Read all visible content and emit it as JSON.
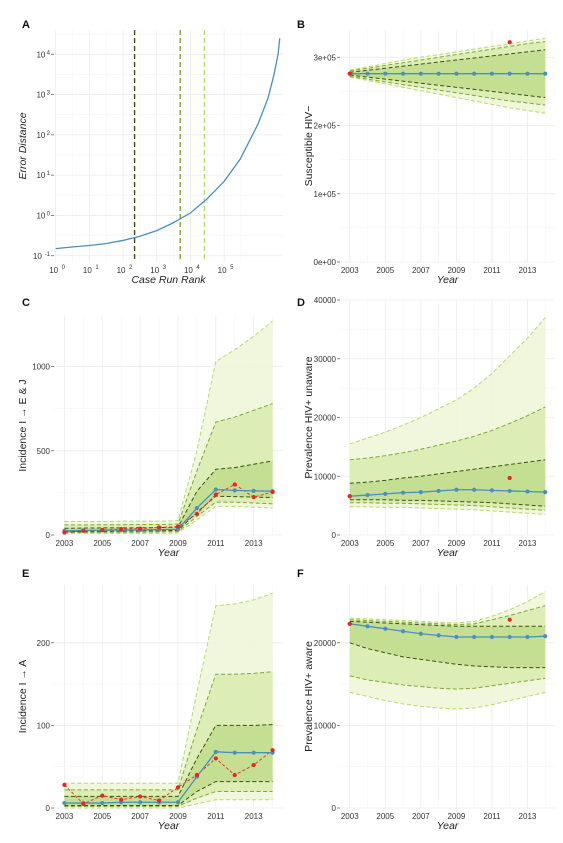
{
  "chart_data": [
    {
      "panel": "A",
      "type": "line",
      "xlabel": "Case Run Rank",
      "ylabel": "Error Distance",
      "x_scale": "log10",
      "y_scale": "log10",
      "xlim": [
        1,
        5000000
      ],
      "ylim": [
        0.07,
        40000
      ],
      "x_tick_exponents": [
        0,
        1,
        2,
        3,
        4,
        5
      ],
      "y_tick_exponents": [
        -1,
        0,
        1,
        2,
        3,
        4
      ],
      "series": [
        {
          "color": "#4a8fc0",
          "x": [
            1,
            3,
            10,
            30,
            100,
            300,
            1000,
            3000,
            10000,
            30000,
            100000,
            300000,
            1000000,
            2000000,
            3000000,
            4000000,
            4500000
          ],
          "y": [
            0.15,
            0.165,
            0.18,
            0.2,
            0.24,
            0.3,
            0.42,
            0.65,
            1.15,
            2.5,
            7,
            25,
            180,
            800,
            3000,
            10000,
            25000
          ]
        }
      ],
      "vlines": [
        {
          "x": 220,
          "color": "#3d4f14",
          "style": "dashed"
        },
        {
          "x": 5000,
          "color": "#7ea830",
          "style": "dashed"
        },
        {
          "x": 26000,
          "color": "#b8d96a",
          "style": "dashed"
        }
      ]
    },
    {
      "panel": "B",
      "type": "line",
      "xlabel": "Year",
      "ylabel": "Susceptible HIV−",
      "ylim": [
        0,
        340000
      ],
      "y_ticks": [
        0,
        100000,
        200000,
        300000
      ],
      "y_tick_labels": [
        "0e+00",
        "1e+05",
        "2e+05",
        "3e+05"
      ],
      "x_ticks": [
        2003,
        2005,
        2007,
        2009,
        2011,
        2013
      ],
      "years": [
        2003,
        2004,
        2005,
        2006,
        2007,
        2008,
        2009,
        2010,
        2011,
        2012,
        2013,
        2014
      ],
      "median": [
        276000,
        276000,
        276000,
        276000,
        276000,
        276000,
        276000,
        276000,
        276000,
        276000,
        276000,
        276000
      ],
      "bands": [
        {
          "lower": [
            271000,
            266000,
            261000,
            256000,
            251000,
            246000,
            241000,
            236000,
            231000,
            226000,
            222000,
            218000
          ],
          "upper": [
            281000,
            286000,
            291000,
            296000,
            300000,
            304000,
            308000,
            312000,
            316000,
            320000,
            324000,
            328000
          ],
          "fill": "#eef6d8",
          "line": "#b8d96a"
        },
        {
          "lower": [
            272000,
            268000,
            264000,
            260000,
            256000,
            252000,
            248000,
            244000,
            240000,
            236000,
            233000,
            230000
          ],
          "upper": [
            280000,
            284000,
            288000,
            292000,
            296000,
            300000,
            304000,
            308000,
            312000,
            316000,
            320000,
            323000
          ],
          "fill": "#d9ecb0",
          "line": "#7ea830"
        },
        {
          "lower": [
            274000,
            271000,
            268000,
            265000,
            262000,
            259000,
            256000,
            253000,
            250000,
            247000,
            244000,
            241000
          ],
          "upper": [
            278000,
            281000,
            284000,
            287000,
            290000,
            293000,
            296000,
            299000,
            302000,
            305000,
            308000,
            311000
          ],
          "fill": "#c2dd8e",
          "line": "#3d4f14"
        }
      ],
      "observed": [
        {
          "year": 2003,
          "value": 276000
        },
        {
          "year": 2012,
          "value": 322000
        }
      ]
    },
    {
      "panel": "C",
      "type": "line",
      "xlabel": "Year",
      "ylabel": "Incidence I → E & J",
      "ylim": [
        0,
        1300
      ],
      "y_ticks": [
        0,
        500,
        1000
      ],
      "y_tick_labels": [
        "0",
        "500",
        "1000"
      ],
      "x_ticks": [
        2003,
        2005,
        2007,
        2009,
        2011,
        2013
      ],
      "years": [
        2003,
        2004,
        2005,
        2006,
        2007,
        2008,
        2009,
        2010,
        2011,
        2012,
        2013,
        2014
      ],
      "median": [
        25,
        27,
        28,
        29,
        30,
        32,
        34,
        160,
        270,
        265,
        262,
        260
      ],
      "bands": [
        {
          "lower": [
            10,
            10,
            10,
            10,
            10,
            10,
            12,
            90,
            170,
            170,
            165,
            160
          ],
          "upper": [
            80,
            80,
            80,
            82,
            82,
            82,
            85,
            500,
            1030,
            1100,
            1180,
            1270
          ],
          "fill": "#eef6d8",
          "line": "#b8d96a"
        },
        {
          "lower": [
            15,
            15,
            16,
            16,
            17,
            18,
            20,
            110,
            195,
            195,
            190,
            185
          ],
          "upper": [
            60,
            60,
            61,
            61,
            62,
            62,
            65,
            380,
            670,
            700,
            740,
            780
          ],
          "fill": "#d9ecb0",
          "line": "#7ea830"
        },
        {
          "lower": [
            20,
            21,
            22,
            23,
            24,
            25,
            27,
            135,
            230,
            228,
            225,
            222
          ],
          "upper": [
            40,
            41,
            42,
            42,
            43,
            44,
            46,
            260,
            390,
            400,
            420,
            440
          ],
          "fill": "#c2dd8e",
          "line": "#3d4f14"
        }
      ],
      "observed_years": [
        2003,
        2004,
        2005,
        2006,
        2007,
        2008,
        2009,
        2010,
        2011,
        2012,
        2013,
        2014
      ],
      "observed": [
        15,
        25,
        30,
        35,
        38,
        45,
        50,
        125,
        240,
        300,
        225,
        255
      ]
    },
    {
      "panel": "D",
      "type": "line",
      "xlabel": "Year",
      "ylabel": "Prevalence HIV+ unaware",
      "ylim": [
        0,
        40000
      ],
      "y_ticks": [
        0,
        10000,
        20000,
        30000,
        40000
      ],
      "y_tick_labels": [
        "0",
        "10000",
        "20000",
        "30000",
        "40000"
      ],
      "x_ticks": [
        2003,
        2005,
        2007,
        2009,
        2011,
        2013
      ],
      "years": [
        2003,
        2004,
        2005,
        2006,
        2007,
        2008,
        2009,
        2010,
        2011,
        2012,
        2013,
        2014
      ],
      "median": [
        6600,
        6800,
        7000,
        7200,
        7300,
        7500,
        7700,
        7700,
        7600,
        7500,
        7400,
        7300
      ],
      "bands": [
        {
          "lower": [
            4800,
            4800,
            4700,
            4700,
            4600,
            4500,
            4400,
            4300,
            4100,
            3900,
            3700,
            3500
          ],
          "upper": [
            15500,
            16500,
            17500,
            18700,
            20000,
            21500,
            23000,
            25000,
            27500,
            30500,
            33500,
            37000
          ],
          "fill": "#eef6d8",
          "line": "#b8d96a"
        },
        {
          "lower": [
            5500,
            5500,
            5400,
            5400,
            5300,
            5200,
            5100,
            5000,
            4800,
            4600,
            4400,
            4200
          ],
          "upper": [
            12800,
            13100,
            13500,
            14000,
            14600,
            15300,
            16000,
            16800,
            17800,
            19000,
            20300,
            21800
          ],
          "fill": "#d9ecb0",
          "line": "#7ea830"
        },
        {
          "lower": [
            6000,
            6000,
            6000,
            5900,
            5900,
            5800,
            5700,
            5600,
            5500,
            5300,
            5100,
            4900
          ],
          "upper": [
            8800,
            9000,
            9300,
            9700,
            10000,
            10400,
            10800,
            11200,
            11600,
            12000,
            12400,
            12800
          ],
          "fill": "#c2dd8e",
          "line": "#3d4f14"
        }
      ],
      "observed": [
        {
          "year": 2003,
          "value": 6600
        },
        {
          "year": 2012,
          "value": 9700
        }
      ]
    },
    {
      "panel": "E",
      "type": "line",
      "xlabel": "Year",
      "ylabel": "Incidence I → A",
      "ylim": [
        0,
        270
      ],
      "y_ticks": [
        0,
        100,
        200
      ],
      "y_tick_labels": [
        "0",
        "100",
        "200"
      ],
      "x_ticks": [
        2003,
        2005,
        2007,
        2009,
        2011,
        2013
      ],
      "years": [
        2003,
        2004,
        2005,
        2006,
        2007,
        2008,
        2009,
        2010,
        2011,
        2012,
        2013,
        2014
      ],
      "median": [
        6,
        6,
        6,
        7,
        7,
        7,
        7,
        38,
        68,
        67,
        67,
        67
      ],
      "bands": [
        {
          "lower": [
            0,
            0,
            0,
            0,
            0,
            0,
            0,
            5,
            10,
            10,
            10,
            10
          ],
          "upper": [
            30,
            30,
            30,
            30,
            30,
            30,
            30,
            140,
            245,
            247,
            252,
            260
          ],
          "fill": "#eef6d8",
          "line": "#b8d96a"
        },
        {
          "lower": [
            2,
            2,
            2,
            2,
            2,
            2,
            2,
            12,
            20,
            20,
            20,
            20
          ],
          "upper": [
            22,
            22,
            22,
            22,
            22,
            22,
            22,
            95,
            162,
            162,
            163,
            165
          ],
          "fill": "#d9ecb0",
          "line": "#7ea830"
        },
        {
          "lower": [
            3,
            3,
            3,
            3,
            3,
            3,
            3,
            20,
            32,
            32,
            32,
            32
          ],
          "upper": [
            14,
            14,
            14,
            14,
            14,
            14,
            14,
            60,
            100,
            100,
            100,
            101
          ],
          "fill": "#c2dd8e",
          "line": "#3d4f14"
        }
      ],
      "observed_years": [
        2003,
        2004,
        2005,
        2006,
        2007,
        2008,
        2009,
        2010,
        2011,
        2012,
        2013,
        2014
      ],
      "observed": [
        28,
        5,
        15,
        10,
        14,
        9,
        25,
        40,
        60,
        40,
        52,
        70
      ]
    },
    {
      "panel": "F",
      "type": "line",
      "xlabel": "Year",
      "ylabel": "Prevalence HIV+ aware",
      "ylim": [
        0,
        27000
      ],
      "y_ticks": [
        0,
        10000,
        20000
      ],
      "y_tick_labels": [
        "0",
        "10000",
        "20000"
      ],
      "x_ticks": [
        2003,
        2005,
        2007,
        2009,
        2011,
        2013
      ],
      "years": [
        2003,
        2004,
        2005,
        2006,
        2007,
        2008,
        2009,
        2010,
        2011,
        2012,
        2013,
        2014
      ],
      "median": [
        22300,
        22000,
        21700,
        21400,
        21100,
        20900,
        20700,
        20700,
        20700,
        20700,
        20700,
        20800
      ],
      "bands": [
        {
          "lower": [
            14000,
            13500,
            13000,
            12600,
            12300,
            12100,
            12000,
            12100,
            12500,
            13000,
            13500,
            14000
          ],
          "upper": [
            23000,
            22900,
            22800,
            22700,
            22600,
            22500,
            22400,
            22600,
            23200,
            24000,
            25000,
            26200
          ],
          "fill": "#eef6d8",
          "line": "#b8d96a"
        },
        {
          "lower": [
            16000,
            15500,
            15200,
            14900,
            14700,
            14500,
            14400,
            14500,
            14800,
            15100,
            15400,
            15700
          ],
          "upper": [
            22800,
            22700,
            22600,
            22500,
            22400,
            22300,
            22200,
            22300,
            22800,
            23300,
            23900,
            24500
          ],
          "fill": "#d9ecb0",
          "line": "#7ea830"
        },
        {
          "lower": [
            20000,
            19300,
            18800,
            18300,
            18000,
            17700,
            17400,
            17200,
            17100,
            17000,
            17000,
            17000
          ],
          "upper": [
            22600,
            22500,
            22400,
            22300,
            22200,
            22100,
            22000,
            22000,
            22000,
            22000,
            22000,
            22000
          ],
          "fill": "#c2dd8e",
          "line": "#3d4f14"
        }
      ],
      "observed": [
        {
          "year": 2003,
          "value": 22300
        },
        {
          "year": 2012,
          "value": 22800
        }
      ]
    }
  ]
}
